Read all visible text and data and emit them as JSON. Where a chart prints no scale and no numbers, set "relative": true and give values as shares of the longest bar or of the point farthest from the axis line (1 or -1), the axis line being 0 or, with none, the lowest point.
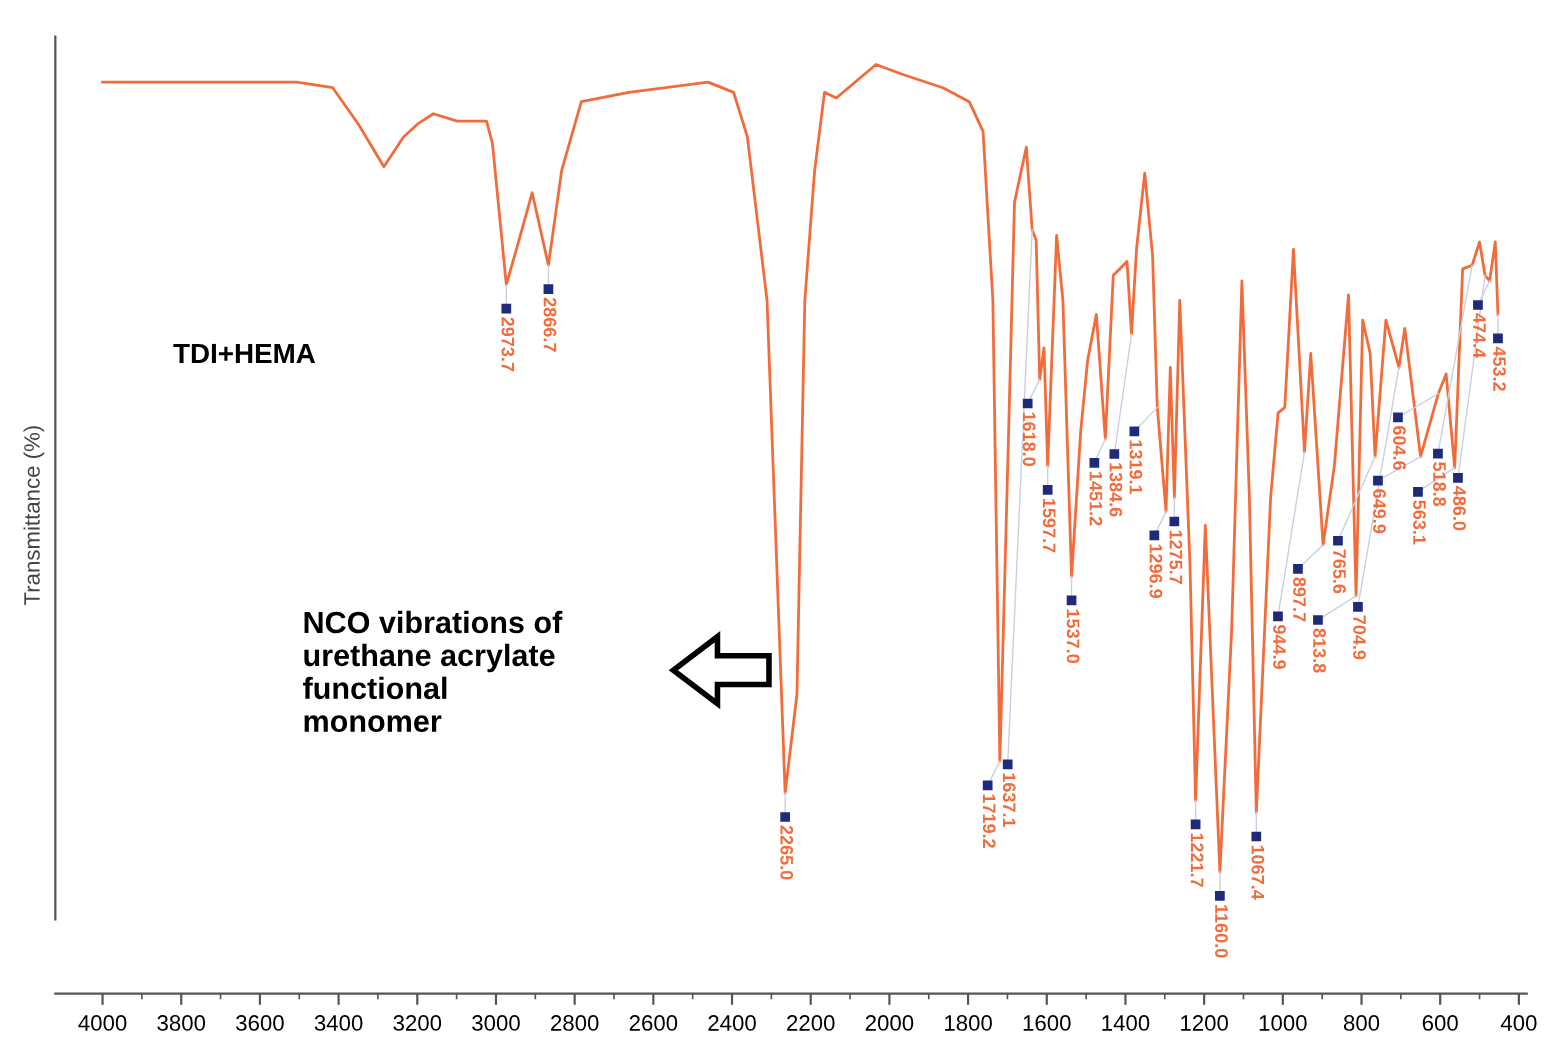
{
  "chart_data": {
    "type": "line",
    "relative": true,
    "color": "#f26b3a",
    "ylabel": "Transmittance (%)",
    "xlim": [
      4120,
      380
    ],
    "xticks": [
      4000,
      3800,
      3600,
      3400,
      3200,
      3000,
      2800,
      2600,
      2400,
      2200,
      2000,
      1800,
      1600,
      1400,
      1200,
      1000,
      800,
      600,
      400
    ],
    "grid": false,
    "x": [
      4000,
      3506,
      3415,
      3350,
      3285,
      3235,
      3199,
      3159,
      3099,
      3024,
      3009,
      2973.7,
      2938,
      2908,
      2866.7,
      2833,
      2783,
      2662,
      2461,
      2396,
      2361,
      2311,
      2265,
      2235,
      2215,
      2190,
      2165,
      2135,
      2034,
      1964,
      1864,
      1797,
      1762,
      1737,
      1719.2,
      1697,
      1682,
      1652,
      1637.1,
      1627,
      1618,
      1607,
      1597.7,
      1575,
      1559,
      1537,
      1514,
      1496,
      1474,
      1451.2,
      1431,
      1396,
      1384.6,
      1372,
      1351,
      1331,
      1319.1,
      1296.9,
      1286,
      1275.7,
      1262,
      1236,
      1221.7,
      1197,
      1160,
      1130,
      1104,
      1085,
      1067.4,
      1031,
      1012,
      995,
      973,
      944.9,
      929,
      897.7,
      869,
      833,
      813.8,
      797,
      778,
      765.6,
      738,
      704.9,
      690,
      649.9,
      604.6,
      585,
      563.1,
      543,
      518.8,
      500,
      486,
      474.4,
      460,
      453.2
    ],
    "values": [
      0.981,
      0.981,
      0.975,
      0.936,
      0.89,
      0.922,
      0.936,
      0.947,
      0.939,
      0.939,
      0.915,
      0.763,
      0.816,
      0.862,
      0.784,
      0.886,
      0.96,
      0.97,
      0.981,
      0.97,
      0.922,
      0.746,
      0.216,
      0.322,
      0.746,
      0.886,
      0.97,
      0.964,
      1.0,
      0.989,
      0.975,
      0.96,
      0.928,
      0.746,
      0.25,
      0.604,
      0.852,
      0.911,
      0.822,
      0.811,
      0.661,
      0.695,
      0.568,
      0.816,
      0.746,
      0.449,
      0.604,
      0.682,
      0.731,
      0.597,
      0.773,
      0.788,
      0.71,
      0.801,
      0.883,
      0.794,
      0.631,
      0.519,
      0.674,
      0.534,
      0.746,
      0.462,
      0.208,
      0.504,
      0.131,
      0.392,
      0.767,
      0.534,
      0.195,
      0.534,
      0.625,
      0.631,
      0.801,
      0.583,
      0.689,
      0.483,
      0.568,
      0.752,
      0.428,
      0.725,
      0.689,
      0.578,
      0.725,
      0.674,
      0.716,
      0.578,
      0.646,
      0.667,
      0.566,
      0.78,
      0.784,
      0.809,
      0.773,
      0.767,
      0.809,
      0.731
    ],
    "annotations": [
      "TDI+HEMA",
      "NCO vibrations of\nurethane acrylate\nfunctional\nmonomer",
      {
        "text": "2973.7",
        "x": 2973.7,
        "y": 0.763
      },
      {
        "text": "2866.7",
        "x": 2866.7,
        "y": 0.784
      },
      {
        "text": "2265.0",
        "x": 2265,
        "y": 0.216
      },
      {
        "text": "1719.2",
        "x": 1719.2,
        "y": 0.25
      },
      {
        "text": "1637.1",
        "x": 1637.1,
        "y": 0.822
      },
      {
        "text": "1618.0",
        "x": 1618,
        "y": 0.661
      },
      {
        "text": "1597.7",
        "x": 1597.7,
        "y": 0.568
      },
      {
        "text": "1537.0",
        "x": 1537,
        "y": 0.449
      },
      {
        "text": "1451.2",
        "x": 1451.2,
        "y": 0.597
      },
      {
        "text": "1384.6",
        "x": 1384.6,
        "y": 0.71
      },
      {
        "text": "1319.1",
        "x": 1319.1,
        "y": 0.631
      },
      {
        "text": "1296.9",
        "x": 1296.9,
        "y": 0.519
      },
      {
        "text": "1275.7",
        "x": 1275.7,
        "y": 0.534
      },
      {
        "text": "1221.7",
        "x": 1221.7,
        "y": 0.208
      },
      {
        "text": "1160.0",
        "x": 1160,
        "y": 0.131
      },
      {
        "text": "1067.4",
        "x": 1067.4,
        "y": 0.195
      },
      {
        "text": "944.9",
        "x": 944.9,
        "y": 0.583
      },
      {
        "text": "897.7",
        "x": 897.7,
        "y": 0.483
      },
      {
        "text": "813.8",
        "x": 813.8,
        "y": 0.428
      },
      {
        "text": "765.6",
        "x": 765.6,
        "y": 0.578
      },
      {
        "text": "704.9",
        "x": 704.9,
        "y": 0.674
      },
      {
        "text": "649.9",
        "x": 649.9,
        "y": 0.578
      },
      {
        "text": "604.6",
        "x": 604.6,
        "y": 0.646
      },
      {
        "text": "563.1",
        "x": 563.1,
        "y": 0.566
      },
      {
        "text": "518.8",
        "x": 518.8,
        "y": 0.784
      },
      {
        "text": "486.0",
        "x": 486,
        "y": 0.773
      },
      {
        "text": "474.4",
        "x": 474.4,
        "y": 0.767
      },
      {
        "text": "453.2",
        "x": 453.2,
        "y": 0.731
      }
    ]
  }
}
